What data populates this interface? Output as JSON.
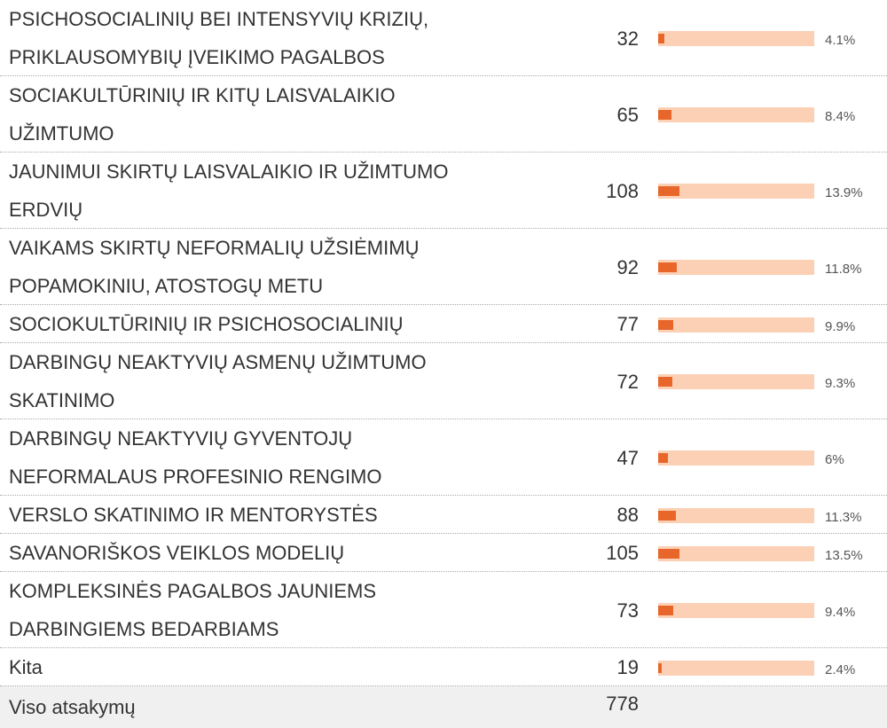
{
  "table": {
    "rows": [
      {
        "label": [
          "PSICHOSOCIALINIŲ BEI INTENSYVIŲ KRIZIŲ,",
          "PRIKLAUSOMYBIŲ ĮVEIKIMO PAGALBOS"
        ],
        "count": 32,
        "percent": {
          "value": 4.1,
          "label": "4.1%"
        }
      },
      {
        "label": [
          "SOCIAKULTŪRINIŲ IR KITŲ LAISVALAIKIO",
          "UŽIMTUMO"
        ],
        "count": 65,
        "percent": {
          "value": 8.4,
          "label": "8.4%"
        }
      },
      {
        "label": [
          "JAUNIMUI SKIRTŲ LAISVALAIKIO IR UŽIMTUMO",
          "ERDVIŲ"
        ],
        "count": 108,
        "percent": {
          "value": 13.9,
          "label": "13.9%"
        }
      },
      {
        "label": [
          "VAIKAMS SKIRTŲ NEFORMALIŲ UŽSIĖMIMŲ",
          "POPAMOKINIU, ATOSTOGŲ METU"
        ],
        "count": 92,
        "percent": {
          "value": 11.8,
          "label": "11.8%"
        }
      },
      {
        "label": [
          "SOCIOKULTŪRINIŲ IR PSICHOSOCIALINIŲ"
        ],
        "count": 77,
        "percent": {
          "value": 9.9,
          "label": "9.9%"
        }
      },
      {
        "label": [
          "DARBINGŲ NEAKTYVIŲ ASMENŲ UŽIMTUMO",
          "SKATINIMO"
        ],
        "count": 72,
        "percent": {
          "value": 9.3,
          "label": "9.3%"
        }
      },
      {
        "label": [
          "DARBINGŲ NEAKTYVIŲ GYVENTOJŲ",
          "NEFORMALAUS PROFESINIO RENGIMO"
        ],
        "count": 47,
        "percent": {
          "value": 6,
          "label": "6%"
        }
      },
      {
        "label": [
          "VERSLO SKATINIMO IR MENTORYSTĖS"
        ],
        "count": 88,
        "percent": {
          "value": 11.3,
          "label": "11.3%"
        }
      },
      {
        "label": [
          "SAVANORIŠKOS VEIKLOS MODELIŲ"
        ],
        "count": 105,
        "percent": {
          "value": 13.5,
          "label": "13.5%"
        }
      },
      {
        "label": [
          "KOMPLEKSINĖS PAGALBOS JAUNIEMS",
          "DARBINGIEMS BEDARBIAMS"
        ],
        "count": 73,
        "percent": {
          "value": 9.4,
          "label": "9.4%"
        }
      },
      {
        "label": [
          "Kita"
        ],
        "count": 19,
        "percent": {
          "value": 2.4,
          "label": "2.4%"
        }
      }
    ],
    "total": {
      "label": "Viso atsakymų",
      "count": 778
    },
    "scale_max": 100
  }
}
